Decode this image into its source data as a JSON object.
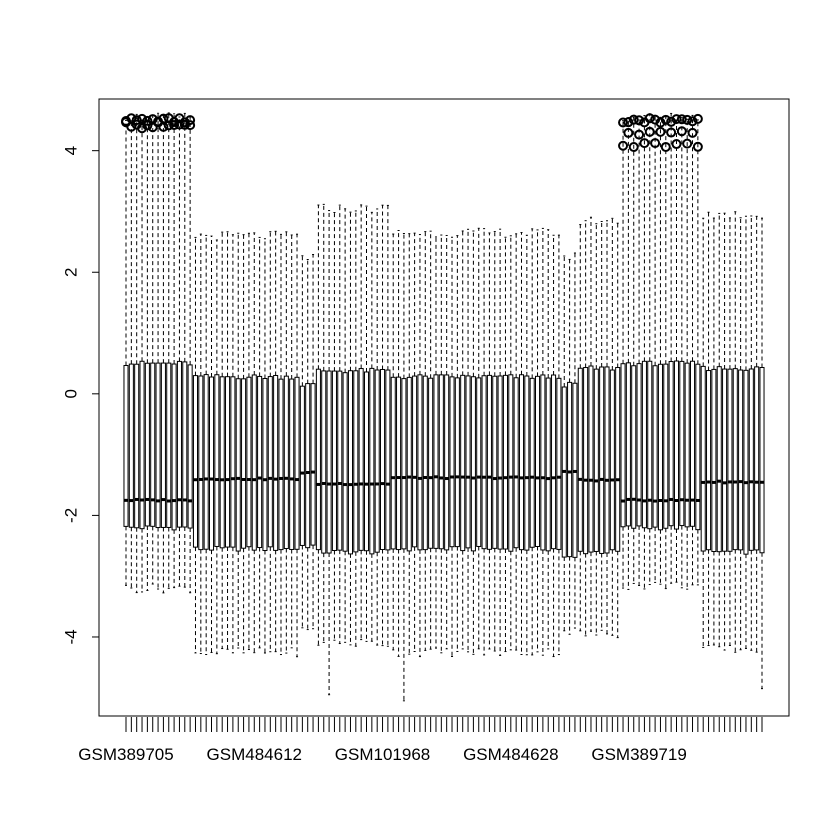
{
  "chart_data": {
    "type": "box",
    "title": "",
    "xlabel": "",
    "ylabel": "",
    "ylim": [
      -5.3,
      4.85
    ],
    "yticks": [
      -4,
      -2,
      0,
      2,
      4
    ],
    "n_boxes": 120,
    "xtick_labels": [
      {
        "index": 1,
        "label": "GSM389705"
      },
      {
        "index": 25,
        "label": "GSM484612"
      },
      {
        "index": 49,
        "label": "GSM101968"
      },
      {
        "index": 73,
        "label": "GSM484628"
      },
      {
        "index": 97,
        "label": "GSM389719"
      }
    ],
    "groups": [
      {
        "from": 1,
        "to": 13,
        "q1": -2.2,
        "median": -1.75,
        "q3": 0.5,
        "lower_whisker": -3.2,
        "upper_whisker": 4.55,
        "outliers_high": [
          4.5,
          4.45,
          4.4
        ]
      },
      {
        "from": 14,
        "to": 33,
        "q1": -2.55,
        "median": -1.4,
        "q3": 0.28,
        "lower_whisker": -4.25,
        "upper_whisker": 2.6
      },
      {
        "from": 34,
        "to": 36,
        "q1": -2.5,
        "median": -1.3,
        "q3": 0.15,
        "lower_whisker": -3.9,
        "upper_whisker": 2.25
      },
      {
        "from": 37,
        "to": 50,
        "q1": -2.6,
        "median": -1.48,
        "q3": 0.38,
        "lower_whisker": -4.1,
        "upper_whisker": 3.05
      },
      {
        "from": 51,
        "to": 82,
        "q1": -2.55,
        "median": -1.38,
        "q3": 0.28,
        "lower_whisker": -4.25,
        "upper_whisker": 2.65
      },
      {
        "from": 83,
        "to": 85,
        "q1": -2.7,
        "median": -1.28,
        "q3": 0.15,
        "lower_whisker": -3.9,
        "upper_whisker": 2.25
      },
      {
        "from": 86,
        "to": 93,
        "q1": -2.6,
        "median": -1.42,
        "q3": 0.42,
        "lower_whisker": -3.95,
        "upper_whisker": 2.85
      },
      {
        "from": 94,
        "to": 108,
        "q1": -2.2,
        "median": -1.75,
        "q3": 0.5,
        "lower_whisker": -3.15,
        "upper_whisker": 4.55,
        "outliers_high": [
          4.5,
          4.3,
          4.1
        ]
      },
      {
        "from": 109,
        "to": 120,
        "q1": -2.6,
        "median": -1.45,
        "q3": 0.42,
        "lower_whisker": -4.2,
        "upper_whisker": 2.95
      }
    ],
    "extreme_low_whiskers": [
      {
        "index": 39,
        "value": -4.95
      },
      {
        "index": 53,
        "value": -5.05
      },
      {
        "index": 120,
        "value": -4.85
      }
    ]
  }
}
